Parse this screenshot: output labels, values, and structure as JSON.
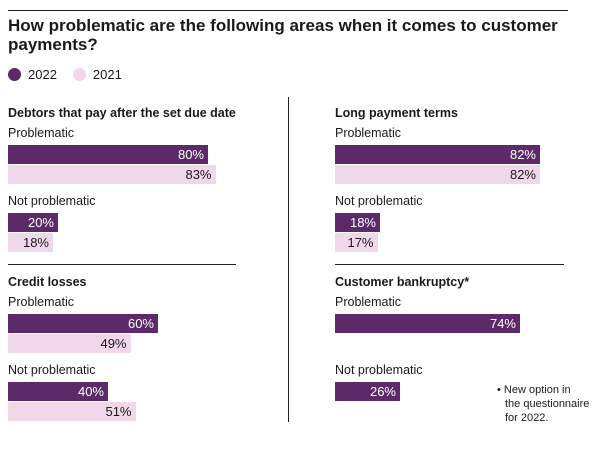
{
  "chart_data": {
    "type": "bar",
    "title": "How problematic are the following areas when it comes to customer payments?",
    "legend": [
      {
        "name": "2022",
        "color": "#5c2a68"
      },
      {
        "name": "2021",
        "color": "#f0d8ea"
      }
    ],
    "series_colors": {
      "2022": "#5c2a68",
      "2021": "#f0d8ea"
    },
    "value_suffix": "%",
    "xlim": [
      0,
      100
    ],
    "panels": [
      {
        "title": "Debtors that pay after the set due date",
        "groups": [
          {
            "label": "Problematic",
            "values": {
              "2022": 80,
              "2021": 83
            }
          },
          {
            "label": "Not problematic",
            "values": {
              "2022": 20,
              "2021": 18
            }
          }
        ]
      },
      {
        "title": "Long payment terms",
        "groups": [
          {
            "label": "Problematic",
            "values": {
              "2022": 82,
              "2021": 82
            }
          },
          {
            "label": "Not problematic",
            "values": {
              "2022": 18,
              "2021": 17
            }
          }
        ]
      },
      {
        "title": "Credit losses",
        "groups": [
          {
            "label": "Problematic",
            "values": {
              "2022": 60,
              "2021": 49
            }
          },
          {
            "label": "Not problematic",
            "values": {
              "2022": 40,
              "2021": 51
            }
          }
        ]
      },
      {
        "title": "Customer bankruptcy*",
        "groups": [
          {
            "label": "Problematic",
            "values": {
              "2022": 74
            }
          },
          {
            "label": "Not problematic",
            "values": {
              "2022": 26
            }
          }
        ]
      }
    ],
    "footnote_lines": [
      "• New option in",
      "the questionnaire",
      "for 2022."
    ]
  }
}
